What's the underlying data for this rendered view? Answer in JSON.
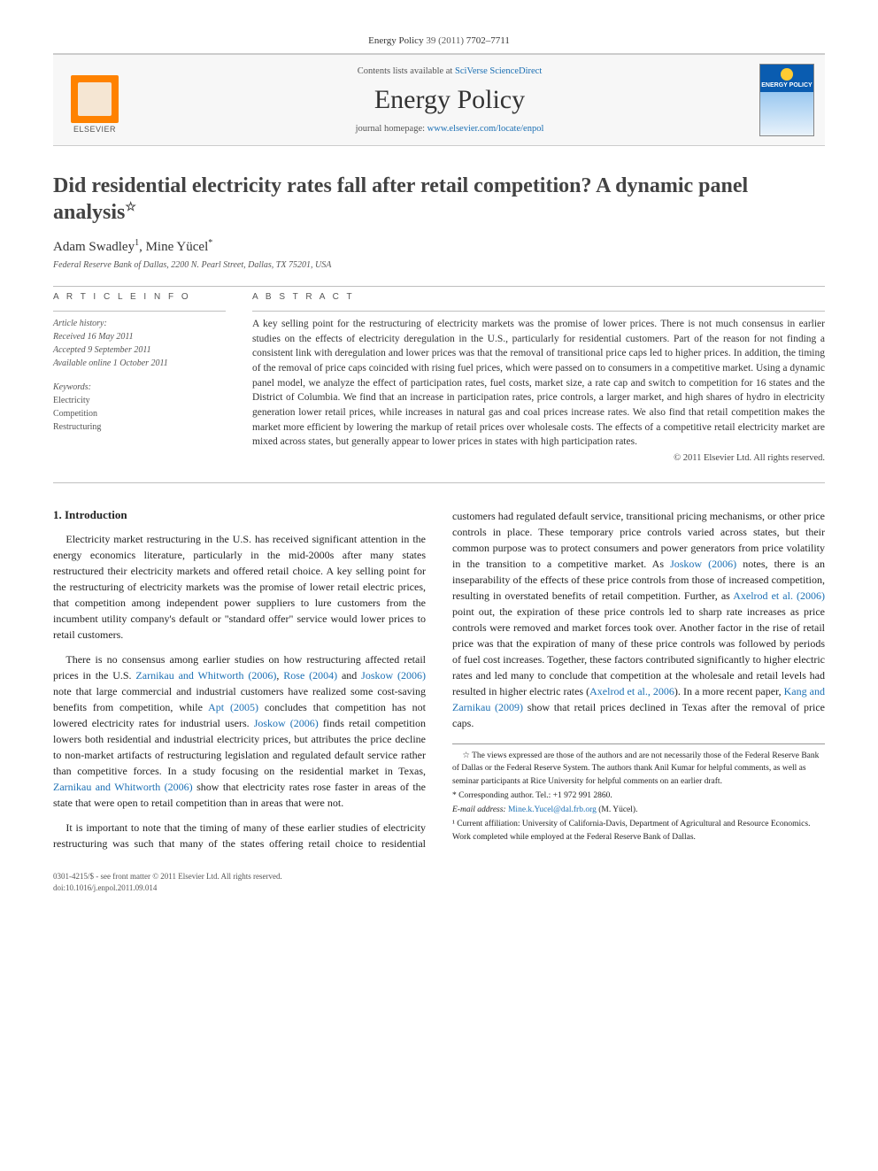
{
  "journal_header": {
    "journal": "Energy Policy",
    "volume": "39",
    "year": "(2011)",
    "pages": "7702–7711"
  },
  "masthead": {
    "elsevier_label": "ELSEVIER",
    "contents_prefix": "Contents lists available at ",
    "contents_link": "SciVerse ScienceDirect",
    "journal_title": "Energy Policy",
    "homepage_prefix": "journal homepage: ",
    "homepage_url": "www.elsevier.com/locate/enpol",
    "cover_label": "ENERGY POLICY"
  },
  "article": {
    "title": "Did residential electricity rates fall after retail competition? A dynamic panel analysis",
    "title_note_symbol": "☆",
    "authors_html": "Adam Swadley",
    "author1": "Adam Swadley",
    "author1_sup": "1",
    "author2": "Mine Yücel",
    "author2_sup": "*",
    "affiliation": "Federal Reserve Bank of Dallas, 2200 N. Pearl Street, Dallas, TX 75201, USA"
  },
  "info": {
    "heading": "A R T I C L E   I N F O",
    "history_label": "Article history:",
    "received": "Received 16 May 2011",
    "accepted": "Accepted 9 September 2011",
    "online": "Available online 1 October 2011",
    "keywords_label": "Keywords:",
    "keywords": [
      "Electricity",
      "Competition",
      "Restructuring"
    ]
  },
  "abstract": {
    "heading": "A B S T R A C T",
    "text": "A key selling point for the restructuring of electricity markets was the promise of lower prices. There is not much consensus in earlier studies on the effects of electricity deregulation in the U.S., particularly for residential customers. Part of the reason for not finding a consistent link with deregulation and lower prices was that the removal of transitional price caps led to higher prices. In addition, the timing of the removal of price caps coincided with rising fuel prices, which were passed on to consumers in a competitive market. Using a dynamic panel model, we analyze the effect of participation rates, fuel costs, market size, a rate cap and switch to competition for 16 states and the District of Columbia. We find that an increase in participation rates, price controls, a larger market, and high shares of hydro in electricity generation lower retail prices, while increases in natural gas and coal prices increase rates. We also find that retail competition makes the market more efficient by lowering the markup of retail prices over wholesale costs. The effects of a competitive retail electricity market are mixed across states, but generally appear to lower prices in states with high participation rates.",
    "copyright": "© 2011 Elsevier Ltd. All rights reserved."
  },
  "body": {
    "section1_heading": "1. Introduction",
    "p1": "Electricity market restructuring in the U.S. has received significant attention in the energy economics literature, particularly in the mid-2000s after many states restructured their electricity markets and offered retail choice. A key selling point for the restructuring of electricity markets was the promise of lower retail electric prices, that competition among independent power suppliers to lure customers from the incumbent utility company's default or \"standard offer\" service would lower prices to retail customers.",
    "p2_a": "There is no consensus among earlier studies on how restructuring affected retail prices in the U.S. ",
    "p2_cite1": "Zarnikau and Whitworth (2006)",
    "p2_b": ", ",
    "p2_cite2": "Rose (2004)",
    "p2_c": " and ",
    "p2_cite3": "Joskow (2006)",
    "p2_d": " note that large commercial and industrial customers have realized some cost-saving benefits from competition, while ",
    "p2_cite4": "Apt (2005)",
    "p2_e": " concludes that competition has not lowered electricity rates for industrial users. ",
    "p2_cite5": "Joskow (2006)",
    "p2_f": " finds retail competition lowers both residential ",
    "p2_g": "and industrial electricity prices, but attributes the price decline to non-market artifacts of restructuring legislation and regulated default service rather than competitive forces. In a study focusing on the residential market in Texas, ",
    "p2_cite6": "Zarnikau and Whitworth (2006)",
    "p2_h": " show that electricity rates rose faster in areas of the state that were open to retail competition than in areas that were not.",
    "p3_a": "It is important to note that the timing of many of these earlier studies of electricity restructuring was such that many of the states offering retail choice to residential customers had regulated default service, transitional pricing mechanisms, or other price controls in place. These temporary price controls varied across states, but their common purpose was to protect consumers and power generators from price volatility in the transition to a competitive market. As ",
    "p3_cite1": "Joskow (2006)",
    "p3_b": " notes, there is an inseparability of the effects of these price controls from those of increased competition, resulting in overstated benefits of retail competition. Further, as ",
    "p3_cite2": "Axelrod et al. (2006)",
    "p3_c": " point out, the expiration of these price controls led to sharp rate increases as price controls were removed and market forces took over. Another factor in the rise of retail price was that the expiration of many of these price controls was followed by periods of fuel cost increases. Together, these factors contributed significantly to higher electric rates and led many to conclude that competition at the wholesale and retail levels had resulted in higher electric rates (",
    "p3_cite3": "Axelrod et al., 2006",
    "p3_d": "). In a more recent paper, ",
    "p3_cite4": "Kang and Zarnikau (2009)",
    "p3_e": " show that retail prices declined in Texas after the removal of price caps."
  },
  "footnotes": {
    "star": "☆ The views expressed are those of the authors and are not necessarily those of the Federal Reserve Bank of Dallas or the Federal Reserve System. The authors thank Anil Kumar for helpful comments, as well as seminar participants at Rice University for helpful comments on an earlier draft.",
    "corr_label": "* Corresponding author. Tel.: +1 972 991 2860.",
    "email_label": "E-mail address:",
    "email": "Mine.k.Yucel@dal.frb.org",
    "email_suffix": "(M. Yücel).",
    "aff1": "¹ Current affiliation: University of California-Davis, Department of Agricultural and Resource Economics. Work completed while employed at the Federal Reserve Bank of Dallas."
  },
  "footer": {
    "line1": "0301-4215/$ - see front matter © 2011 Elsevier Ltd. All rights reserved.",
    "line2": "doi:10.1016/j.enpol.2011.09.014"
  },
  "colors": {
    "link": "#1b6fb3",
    "elsevier_orange": "#ff8200",
    "cover_blue": "#0a5cb0",
    "text": "#333333",
    "rule": "#bfbfbf"
  },
  "typography": {
    "title_fontsize": 24,
    "journal_title_fontsize": 30,
    "body_fontsize": 12,
    "abstract_fontsize": 11.5,
    "footnote_fontsize": 9.5
  }
}
